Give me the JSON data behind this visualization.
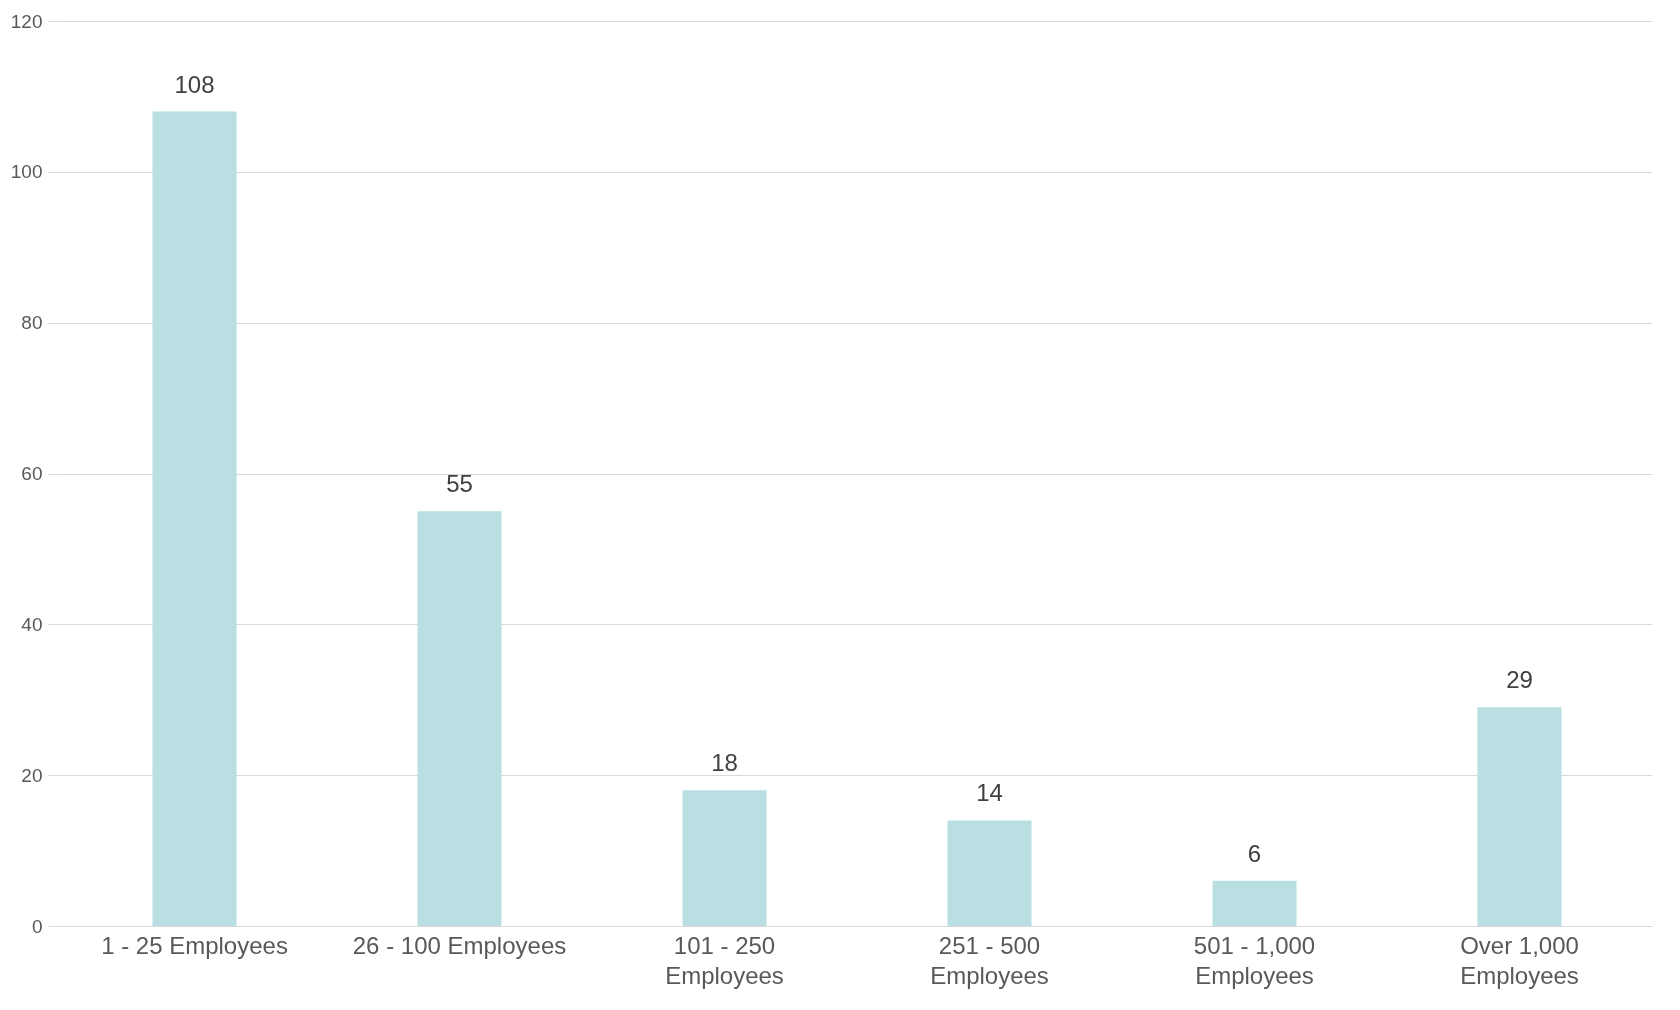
{
  "chart_data": {
    "type": "bar",
    "categories": [
      "1 - 25 Employees",
      "26 - 100 Employees",
      "101 - 250 Employees",
      "251 - 500 Employees",
      "501 - 1,000 Employees",
      "Over 1,000 Employees"
    ],
    "values": [
      108,
      55,
      18,
      14,
      6,
      29
    ],
    "color": "#b9dfe2",
    "ylim": [
      0,
      120
    ],
    "yticks": [
      0,
      20,
      40,
      60,
      80,
      100,
      120
    ],
    "grid": "y",
    "data_labels": true
  }
}
